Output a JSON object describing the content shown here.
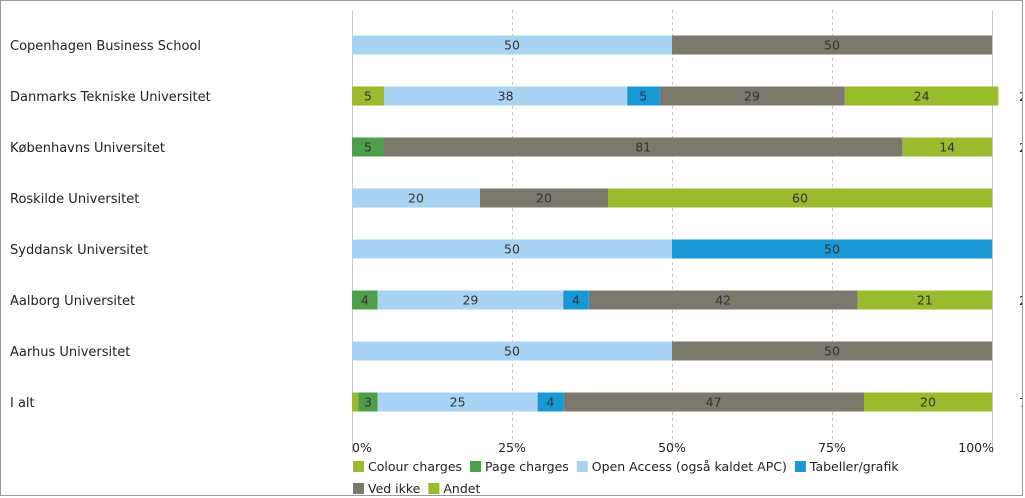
{
  "chart_data": {
    "type": "bar",
    "stacked": true,
    "orientation": "horizontal",
    "categories": [
      "Copenhagen Business School",
      "Danmarks Tekniske Universitet",
      "Københavns Universitet",
      "Roskilde Universitet",
      "Syddansk Universitet",
      "Aalborg Universitet",
      "Aarhus Universitet",
      "I alt"
    ],
    "series": [
      {
        "name": "Colour charges",
        "color": "#9bbb2e",
        "values": [
          0,
          5,
          0,
          0,
          0,
          0,
          0,
          1
        ],
        "labels": [
          "",
          "5",
          "",
          "",
          "",
          "",
          "",
          ""
        ]
      },
      {
        "name": "Page charges",
        "color": "#4e9d4a",
        "values": [
          0,
          0,
          5,
          0,
          0,
          4,
          0,
          3
        ],
        "labels": [
          "",
          "",
          "5",
          "",
          "",
          "4",
          "",
          "3"
        ]
      },
      {
        "name": "Open Access (også kaldet APC)",
        "color": "#a9d3f2",
        "values": [
          50,
          38,
          0,
          20,
          50,
          29,
          50,
          25
        ],
        "labels": [
          "50",
          "38",
          "",
          "20",
          "50",
          "29",
          "50",
          "25"
        ]
      },
      {
        "name": "Tabeller/grafik",
        "color": "#1a98d4",
        "values": [
          0,
          5,
          0,
          0,
          50,
          4,
          0,
          4
        ],
        "labels": [
          "",
          "5",
          "",
          "",
          "50",
          "4",
          "",
          "4"
        ]
      },
      {
        "name": "Ved ikke",
        "color": "#7b786c",
        "values": [
          50,
          29,
          81,
          20,
          0,
          42,
          50,
          47
        ],
        "labels": [
          "50",
          "29",
          "81",
          "20",
          "",
          "42",
          "50",
          "47"
        ]
      },
      {
        "name": "Andet",
        "color": "#9bbb2e",
        "values": [
          0,
          24,
          14,
          60,
          0,
          21,
          0,
          20
        ],
        "labels": [
          "",
          "24",
          "14",
          "60",
          "",
          "21",
          "",
          "20"
        ]
      }
    ],
    "x_ticks": [
      "0%",
      "25%",
      "50%",
      "75%",
      "100%"
    ],
    "xlim": [
      0,
      100
    ],
    "grid": "vertical dashed",
    "legend_position": "bottom",
    "right_edge_labels": [
      "",
      "2",
      "2",
      "",
      "",
      "2",
      "",
      "7"
    ]
  }
}
